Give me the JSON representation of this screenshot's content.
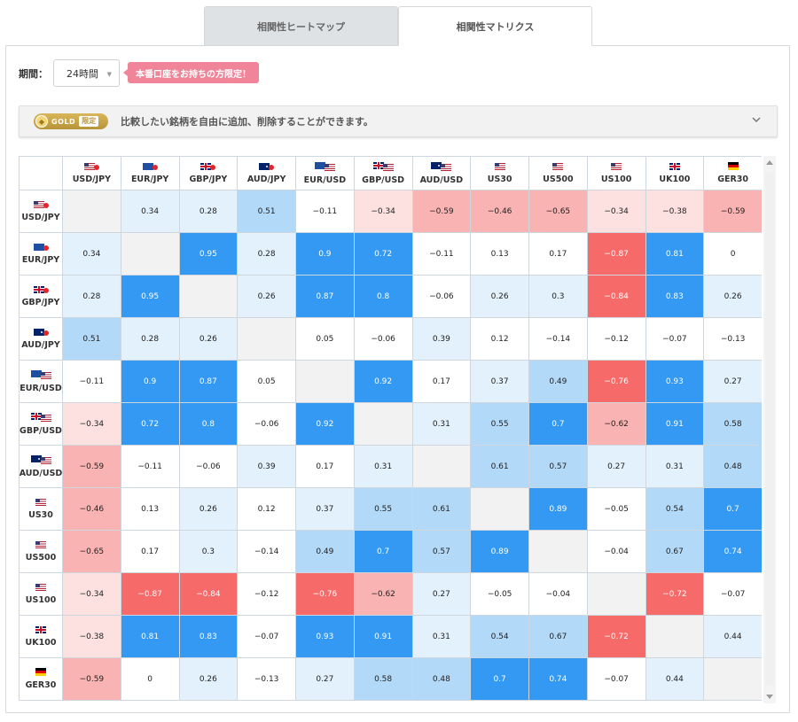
{
  "tabs": [
    {
      "label": "相関性ヒートマップ",
      "active": false
    },
    {
      "label": "相関性マトリクス",
      "active": true
    }
  ],
  "controls": {
    "period_label": "期間：",
    "period_value": "24時間",
    "promo_text": "本番口座をお持ちの方限定！"
  },
  "notice": {
    "badge_text": "GOLD",
    "badge_limit": "限定",
    "text": "比較したい銘柄を自由に追加、削除することができます。",
    "icon": "chevron-down-icon"
  },
  "symbols": [
    {
      "label": "USD/JPY",
      "flags": [
        "us",
        "jp"
      ]
    },
    {
      "label": "EUR/JPY",
      "flags": [
        "eu",
        "jp"
      ]
    },
    {
      "label": "GBP/JPY",
      "flags": [
        "gb",
        "jp"
      ]
    },
    {
      "label": "AUD/JPY",
      "flags": [
        "au",
        "jp"
      ]
    },
    {
      "label": "EUR/USD",
      "flags": [
        "eu",
        "us"
      ]
    },
    {
      "label": "GBP/USD",
      "flags": [
        "gb",
        "us"
      ]
    },
    {
      "label": "AUD/USD",
      "flags": [
        "au",
        "us"
      ]
    },
    {
      "label": "US30",
      "flags": [
        "us"
      ]
    },
    {
      "label": "US500",
      "flags": [
        "us"
      ]
    },
    {
      "label": "US100",
      "flags": [
        "us"
      ]
    },
    {
      "label": "UK100",
      "flags": [
        "gb"
      ]
    },
    {
      "label": "GER30",
      "flags": [
        "de"
      ]
    }
  ],
  "matrix": [
    [
      null,
      "0.34",
      "0.28",
      "0.51",
      "−0.11",
      "−0.34",
      "−0.59",
      "−0.46",
      "−0.65",
      "−0.34",
      "−0.38",
      "−0.59"
    ],
    [
      "0.34",
      null,
      "0.95",
      "0.28",
      "0.9",
      "0.72",
      "−0.11",
      "0.13",
      "0.17",
      "−0.87",
      "0.81",
      "0"
    ],
    [
      "0.28",
      "0.95",
      null,
      "0.26",
      "0.87",
      "0.8",
      "−0.06",
      "0.26",
      "0.3",
      "−0.84",
      "0.83",
      "0.26"
    ],
    [
      "0.51",
      "0.28",
      "0.26",
      null,
      "0.05",
      "−0.06",
      "0.39",
      "0.12",
      "−0.14",
      "−0.12",
      "−0.07",
      "−0.13"
    ],
    [
      "−0.11",
      "0.9",
      "0.87",
      "0.05",
      null,
      "0.92",
      "0.17",
      "0.37",
      "0.49",
      "−0.76",
      "0.93",
      "0.27"
    ],
    [
      "−0.34",
      "0.72",
      "0.8",
      "−0.06",
      "0.92",
      null,
      "0.31",
      "0.55",
      "0.7",
      "−0.62",
      "0.91",
      "0.58"
    ],
    [
      "−0.59",
      "−0.11",
      "−0.06",
      "0.39",
      "0.17",
      "0.31",
      null,
      "0.61",
      "0.57",
      "0.27",
      "0.31",
      "0.48"
    ],
    [
      "−0.46",
      "0.13",
      "0.26",
      "0.12",
      "0.37",
      "0.55",
      "0.61",
      null,
      "0.89",
      "−0.05",
      "0.54",
      "0.7"
    ],
    [
      "−0.65",
      "0.17",
      "0.3",
      "−0.14",
      "0.49",
      "0.7",
      "0.57",
      "0.89",
      null,
      "−0.04",
      "0.67",
      "0.74"
    ],
    [
      "−0.34",
      "−0.87",
      "−0.84",
      "−0.12",
      "−0.76",
      "−0.62",
      "0.27",
      "−0.05",
      "−0.04",
      null,
      "−0.72",
      "−0.07"
    ],
    [
      "−0.38",
      "0.81",
      "0.83",
      "−0.07",
      "0.93",
      "0.91",
      "0.31",
      "0.54",
      "0.67",
      "−0.72",
      null,
      "0.44"
    ],
    [
      "−0.59",
      "0",
      "0.26",
      "−0.13",
      "0.27",
      "0.58",
      "0.48",
      "0.7",
      "0.74",
      "−0.07",
      "0.44",
      null
    ]
  ],
  "colors": {
    "pos_strong": "#3399f3",
    "pos_mid": "#b3d9f8",
    "pos_weak": "#e3f1fc",
    "neg_strong": "#f76a6a",
    "neg_mid": "#fab3b3",
    "neg_weak": "#fde1e1",
    "neutral": "#ffffff",
    "diagonal": "#f2f2f2"
  }
}
